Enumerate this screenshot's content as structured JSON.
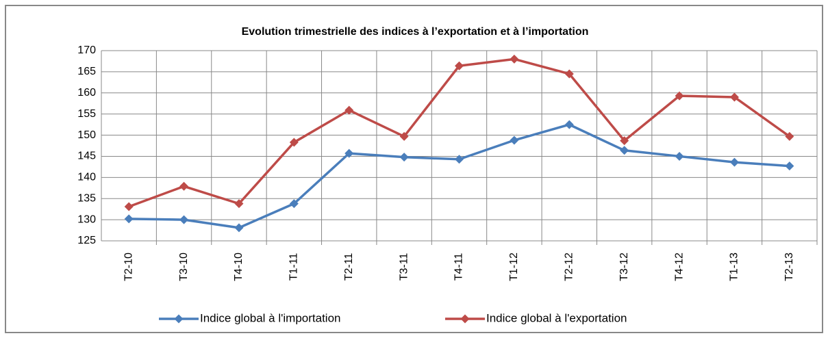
{
  "chart_data": {
    "type": "line",
    "title": "Evolution trimestrielle des indices à l’exportation et à l’importation",
    "categories": [
      "T2-10",
      "T3-10",
      "T4-10",
      "T1-11",
      "T2-11",
      "T3-11",
      "T4-11",
      "T1-12",
      "T2-12",
      "T3-12",
      "T4-12",
      "T1-13",
      "T2-13"
    ],
    "series": [
      {
        "name": "Indice global à l'importation",
        "color": "#4a7ebb",
        "values": [
          130.2,
          130.0,
          128.1,
          133.8,
          145.7,
          144.8,
          144.3,
          148.8,
          152.5,
          146.4,
          145.0,
          143.6,
          142.7
        ]
      },
      {
        "name": "Indice global à l'exportation",
        "color": "#be4b48",
        "values": [
          133.1,
          137.9,
          133.8,
          148.3,
          155.9,
          149.7,
          166.4,
          168.0,
          164.5,
          148.7,
          159.3,
          159.0,
          149.7
        ]
      }
    ],
    "ylim": [
      125,
      170
    ],
    "yticks": [
      125,
      130,
      135,
      140,
      145,
      150,
      155,
      160,
      165,
      170
    ],
    "grid": true,
    "legend": "bottom"
  }
}
